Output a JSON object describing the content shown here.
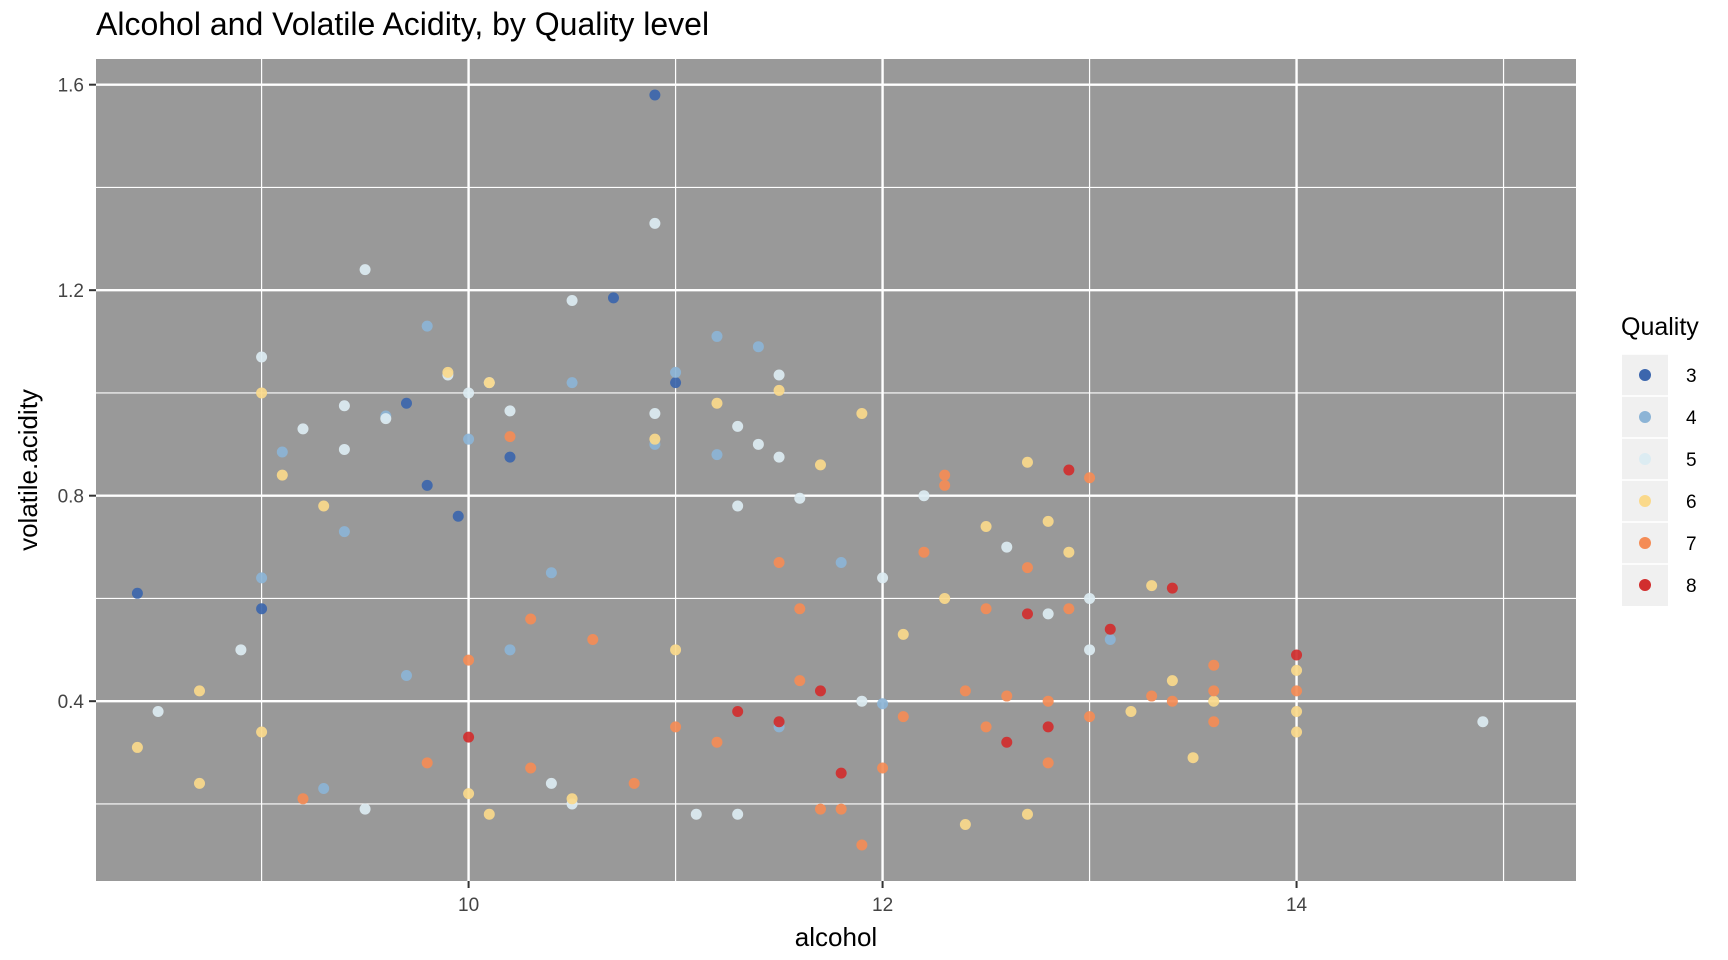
{
  "chart_data": {
    "type": "scatter",
    "title": "Alcohol and Volatile Acidity, by Quality level",
    "xlabel": "alcohol",
    "ylabel": "volatile.acidity",
    "xlim": [
      8.2,
      15.35
    ],
    "ylim": [
      0.05,
      1.65
    ],
    "x_ticks": [
      10,
      12,
      14
    ],
    "x_tick_labels": [
      "10",
      "12",
      "14"
    ],
    "y_ticks": [
      0.4,
      0.8,
      1.2,
      1.6
    ],
    "y_tick_labels": [
      "0.4",
      "0.8",
      "1.2",
      "1.6"
    ],
    "background": "#999999",
    "grid": true,
    "legend": {
      "title": "Quality",
      "position": "right"
    },
    "series": [
      {
        "name": "3",
        "color": "#3c66ad",
        "points": [
          [
            8.4,
            0.61
          ],
          [
            9.0,
            0.58
          ],
          [
            9.7,
            0.98
          ],
          [
            9.8,
            0.82
          ],
          [
            9.95,
            0.76
          ],
          [
            10.2,
            0.875
          ],
          [
            10.7,
            1.185
          ],
          [
            10.9,
            1.58
          ],
          [
            11.0,
            1.02
          ]
        ]
      },
      {
        "name": "4",
        "color": "#8cb4d6",
        "points": [
          [
            9.1,
            0.885
          ],
          [
            9.3,
            0.23
          ],
          [
            9.6,
            0.955
          ],
          [
            9.8,
            1.13
          ],
          [
            10.0,
            0.91
          ],
          [
            10.5,
            1.02
          ],
          [
            11.0,
            1.04
          ],
          [
            11.2,
            1.11
          ],
          [
            11.2,
            0.88
          ],
          [
            11.4,
            1.09
          ],
          [
            10.9,
            0.9
          ],
          [
            11.8,
            0.67
          ],
          [
            12.0,
            0.395
          ],
          [
            9.4,
            0.73
          ],
          [
            10.4,
            0.65
          ],
          [
            11.5,
            0.35
          ],
          [
            9.0,
            0.64
          ],
          [
            13.1,
            0.52
          ],
          [
            10.2,
            0.5
          ],
          [
            9.7,
            0.45
          ]
        ]
      },
      {
        "name": "5",
        "color": "#dcecf2",
        "points": [
          [
            8.5,
            0.38
          ],
          [
            8.9,
            0.5
          ],
          [
            9.0,
            1.07
          ],
          [
            9.2,
            0.93
          ],
          [
            9.4,
            0.975
          ],
          [
            9.4,
            0.89
          ],
          [
            9.5,
            1.24
          ],
          [
            9.6,
            0.95
          ],
          [
            9.9,
            1.035
          ],
          [
            10.0,
            1.0
          ],
          [
            10.1,
            1.02
          ],
          [
            10.2,
            0.965
          ],
          [
            10.5,
            1.18
          ],
          [
            10.9,
            1.33
          ],
          [
            10.9,
            0.96
          ],
          [
            11.5,
            1.035
          ],
          [
            11.3,
            0.935
          ],
          [
            11.4,
            0.9
          ],
          [
            11.5,
            0.875
          ],
          [
            11.3,
            0.78
          ],
          [
            11.6,
            0.795
          ],
          [
            12.2,
            0.8
          ],
          [
            12.0,
            0.64
          ],
          [
            12.6,
            0.7
          ],
          [
            12.8,
            0.57
          ],
          [
            13.0,
            0.6
          ],
          [
            13.0,
            0.5
          ],
          [
            14.9,
            0.36
          ],
          [
            11.1,
            0.18
          ],
          [
            11.3,
            0.18
          ],
          [
            10.5,
            0.2
          ],
          [
            9.5,
            0.19
          ],
          [
            10.4,
            0.24
          ],
          [
            11.9,
            0.4
          ]
        ]
      },
      {
        "name": "6",
        "color": "#fad98b",
        "points": [
          [
            8.4,
            0.31
          ],
          [
            8.7,
            0.42
          ],
          [
            8.7,
            0.24
          ],
          [
            9.0,
            1.0
          ],
          [
            9.1,
            0.84
          ],
          [
            9.3,
            0.78
          ],
          [
            9.9,
            1.04
          ],
          [
            10.1,
            1.02
          ],
          [
            10.9,
            0.91
          ],
          [
            11.2,
            0.98
          ],
          [
            11.5,
            1.005
          ],
          [
            11.9,
            0.96
          ],
          [
            11.7,
            0.86
          ],
          [
            12.7,
            0.865
          ],
          [
            12.8,
            0.75
          ],
          [
            12.5,
            0.74
          ],
          [
            12.9,
            0.69
          ],
          [
            13.3,
            0.625
          ],
          [
            13.4,
            0.44
          ],
          [
            13.5,
            0.29
          ],
          [
            14.0,
            0.46
          ],
          [
            14.0,
            0.38
          ],
          [
            14.0,
            0.34
          ],
          [
            13.6,
            0.4
          ],
          [
            13.2,
            0.38
          ],
          [
            12.4,
            0.16
          ],
          [
            12.7,
            0.18
          ],
          [
            10.1,
            0.18
          ],
          [
            10.5,
            0.21
          ],
          [
            11.0,
            0.5
          ],
          [
            12.1,
            0.53
          ],
          [
            12.3,
            0.6
          ],
          [
            9.0,
            0.34
          ],
          [
            10.0,
            0.22
          ]
        ]
      },
      {
        "name": "7",
        "color": "#f48c56",
        "points": [
          [
            9.2,
            0.21
          ],
          [
            10.2,
            0.915
          ],
          [
            12.3,
            0.84
          ],
          [
            12.3,
            0.82
          ],
          [
            12.2,
            0.69
          ],
          [
            13.0,
            0.835
          ],
          [
            12.7,
            0.66
          ],
          [
            12.9,
            0.58
          ],
          [
            12.5,
            0.58
          ],
          [
            12.6,
            0.41
          ],
          [
            12.8,
            0.28
          ],
          [
            13.0,
            0.37
          ],
          [
            13.3,
            0.41
          ],
          [
            13.4,
            0.4
          ],
          [
            13.6,
            0.47
          ],
          [
            13.6,
            0.36
          ],
          [
            13.6,
            0.42
          ],
          [
            14.0,
            0.42
          ],
          [
            11.9,
            0.12
          ],
          [
            11.7,
            0.19
          ],
          [
            11.8,
            0.19
          ],
          [
            12.0,
            0.27
          ],
          [
            11.5,
            0.67
          ],
          [
            11.6,
            0.58
          ],
          [
            10.3,
            0.27
          ],
          [
            10.8,
            0.24
          ],
          [
            11.0,
            0.35
          ],
          [
            11.2,
            0.32
          ],
          [
            12.1,
            0.37
          ],
          [
            12.5,
            0.35
          ],
          [
            12.8,
            0.4
          ],
          [
            11.6,
            0.44
          ],
          [
            10.6,
            0.52
          ],
          [
            10.3,
            0.56
          ],
          [
            10.0,
            0.48
          ],
          [
            9.8,
            0.28
          ],
          [
            12.4,
            0.42
          ]
        ]
      },
      {
        "name": "8",
        "color": "#d12e2e",
        "points": [
          [
            10.0,
            0.33
          ],
          [
            11.3,
            0.38
          ],
          [
            11.5,
            0.36
          ],
          [
            11.7,
            0.42
          ],
          [
            11.8,
            0.26
          ],
          [
            12.6,
            0.32
          ],
          [
            12.7,
            0.57
          ],
          [
            12.8,
            0.35
          ],
          [
            12.9,
            0.85
          ],
          [
            13.1,
            0.54
          ],
          [
            13.4,
            0.62
          ],
          [
            14.0,
            0.49
          ]
        ]
      }
    ]
  }
}
